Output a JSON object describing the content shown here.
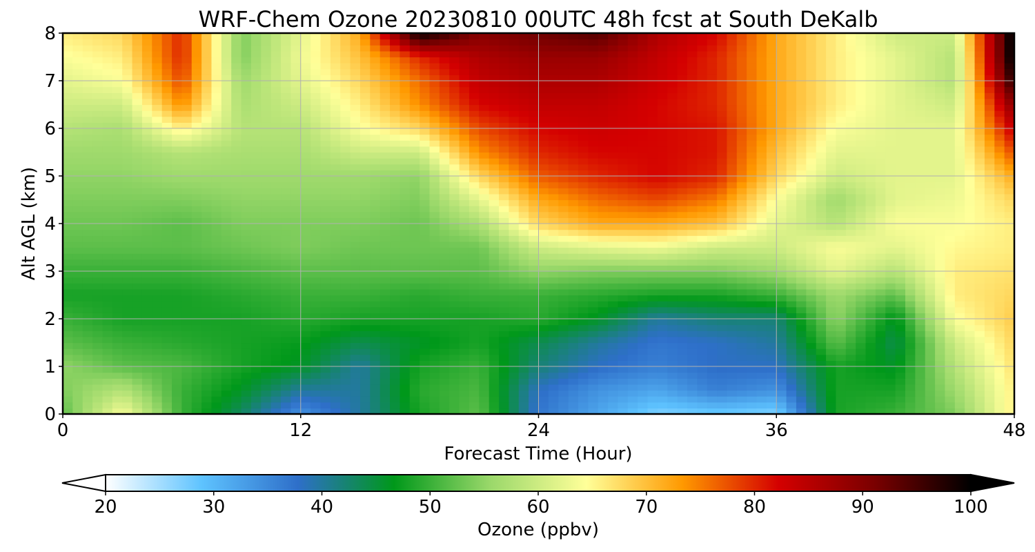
{
  "chart_data": {
    "type": "heatmap",
    "title": "WRF-Chem Ozone  20230810 00UTC 48h fcst at South DeKalb",
    "xlabel": "Forecast Time (Hour)",
    "ylabel": "Alt AGL (km)",
    "xlim": [
      0,
      48
    ],
    "ylim": [
      0,
      8
    ],
    "xticks": [
      0,
      12,
      24,
      36,
      48
    ],
    "yticks": [
      0,
      1,
      2,
      3,
      4,
      5,
      6,
      7,
      8
    ],
    "grid": true,
    "colorbar": {
      "label": "Ozone  (ppbv)",
      "min": 20,
      "max": 100,
      "ticks": [
        20,
        30,
        40,
        50,
        60,
        70,
        80,
        90,
        100
      ],
      "extend": "both",
      "orientation": "horizontal",
      "colors": [
        "#ffffff",
        "#5ec3ff",
        "#2e6fc9",
        "#00981a",
        "#9ad86a",
        "#ffff99",
        "#ff9900",
        "#d40000",
        "#7a0000",
        "#000000"
      ]
    },
    "x": [
      0,
      3,
      6,
      9,
      12,
      15,
      18,
      21,
      24,
      27,
      30,
      33,
      36,
      39,
      42,
      45,
      48
    ],
    "y": [
      0,
      0.5,
      1,
      1.5,
      2,
      2.5,
      3,
      3.5,
      4,
      4.5,
      5,
      5.5,
      6,
      6.5,
      7,
      7.5,
      8
    ],
    "z": [
      [
        52,
        64,
        50,
        43,
        34,
        40,
        48,
        52,
        37,
        32,
        27,
        28,
        27,
        48,
        50,
        54,
        66
      ],
      [
        54,
        58,
        50,
        46,
        40,
        40,
        49,
        51,
        38,
        34,
        32,
        36,
        34,
        48,
        48,
        56,
        66
      ],
      [
        55,
        52,
        51,
        48,
        46,
        40,
        48,
        50,
        42,
        38,
        36,
        38,
        38,
        48,
        46,
        58,
        67
      ],
      [
        52,
        50,
        49,
        48,
        47,
        44,
        46,
        48,
        44,
        40,
        37,
        38,
        40,
        52,
        44,
        60,
        68
      ],
      [
        50,
        48,
        48,
        48,
        49,
        48,
        48,
        48,
        49,
        46,
        40,
        42,
        42,
        55,
        46,
        64,
        69
      ],
      [
        48,
        48,
        48,
        49,
        50,
        50,
        49,
        50,
        50,
        49,
        48,
        48,
        50,
        56,
        52,
        66,
        68
      ],
      [
        50,
        50,
        50,
        51,
        52,
        52,
        52,
        52,
        55,
        54,
        54,
        54,
        56,
        62,
        58,
        66,
        67
      ],
      [
        52,
        52,
        52,
        53,
        54,
        53,
        53,
        53,
        60,
        62,
        63,
        60,
        60,
        64,
        62,
        65,
        66
      ],
      [
        53,
        53,
        52,
        54,
        54,
        54,
        53,
        57,
        68,
        72,
        72,
        70,
        62,
        58,
        64,
        64,
        66
      ],
      [
        54,
        54,
        54,
        55,
        55,
        55,
        54,
        62,
        72,
        76,
        78,
        75,
        64,
        56,
        62,
        63,
        68
      ],
      [
        55,
        55,
        56,
        56,
        56,
        56,
        55,
        68,
        77,
        80,
        82,
        80,
        68,
        60,
        62,
        62,
        72
      ],
      [
        56,
        56,
        58,
        57,
        57,
        60,
        60,
        74,
        80,
        82,
        82,
        81,
        70,
        62,
        62,
        62,
        78
      ],
      [
        58,
        57,
        66,
        58,
        58,
        64,
        68,
        78,
        82,
        83,
        82,
        81,
        72,
        64,
        62,
        62,
        84
      ],
      [
        60,
        60,
        74,
        57,
        60,
        66,
        74,
        82,
        84,
        84,
        82,
        80,
        72,
        66,
        62,
        60,
        90
      ],
      [
        62,
        64,
        78,
        56,
        62,
        68,
        76,
        84,
        86,
        86,
        83,
        80,
        72,
        66,
        62,
        58,
        98
      ],
      [
        64,
        66,
        80,
        54,
        63,
        70,
        80,
        86,
        88,
        88,
        84,
        80,
        72,
        66,
        62,
        58,
        102
      ],
      [
        66,
        68,
        80,
        54,
        62,
        72,
        100,
        90,
        92,
        94,
        86,
        82,
        72,
        66,
        60,
        60,
        102
      ]
    ]
  }
}
